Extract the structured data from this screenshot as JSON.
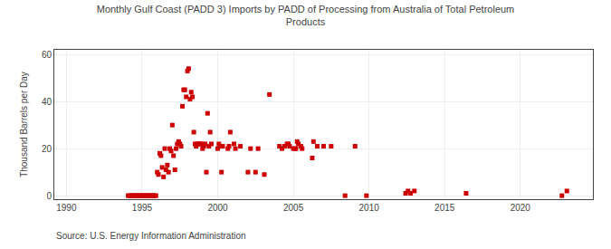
{
  "chart_data": {
    "type": "scatter",
    "title": "Monthly Gulf Coast (PADD 3) Imports by PADD of Processing from Australia of Total Petroleum\nProducts",
    "ylabel": "Thousand Barrels per Day",
    "annotations": [
      "Source: U.S. Energy Information Administration"
    ],
    "color": "#cc0000",
    "marker": "square",
    "grid": true,
    "xlim": [
      1989.2,
      2024.8
    ],
    "ylim": [
      -1.5,
      62
    ],
    "xticks": [
      1990,
      1995,
      2000,
      2005,
      2010,
      2015,
      2020
    ],
    "yticks": [
      0,
      20,
      40,
      60
    ],
    "x": [
      1994.08,
      1994.17,
      1994.25,
      1994.33,
      1994.42,
      1994.5,
      1994.58,
      1994.67,
      1994.75,
      1994.83,
      1994.92,
      1995.0,
      1995.08,
      1995.17,
      1995.25,
      1995.33,
      1995.42,
      1995.5,
      1995.58,
      1995.67,
      1995.75,
      1995.83,
      1995.92,
      1996.0,
      1996.08,
      1996.17,
      1996.25,
      1996.33,
      1996.42,
      1996.5,
      1996.58,
      1996.67,
      1996.75,
      1996.83,
      1996.92,
      1997.0,
      1997.08,
      1997.17,
      1997.25,
      1997.33,
      1997.42,
      1997.5,
      1997.58,
      1997.67,
      1997.75,
      1997.83,
      1997.92,
      1998.0,
      1998.08,
      1998.17,
      1998.25,
      1998.33,
      1998.42,
      1998.5,
      1998.58,
      1998.67,
      1998.75,
      1998.83,
      1998.92,
      1999.0,
      1999.08,
      1999.17,
      1999.25,
      1999.33,
      1999.42,
      1999.5,
      1999.58,
      2000.0,
      2000.08,
      2000.17,
      2000.25,
      2000.33,
      2000.67,
      2000.75,
      2000.83,
      2001.08,
      2001.17,
      2001.5,
      2002.0,
      2002.17,
      2002.5,
      2002.67,
      2003.08,
      2003.42,
      2004.08,
      2004.25,
      2004.42,
      2004.58,
      2004.67,
      2004.75,
      2005.0,
      2005.08,
      2005.17,
      2005.25,
      2005.33,
      2005.5,
      2005.58,
      2006.25,
      2006.33,
      2006.58,
      2007.0,
      2007.5,
      2008.42,
      2009.08,
      2009.83,
      2012.42,
      2012.58,
      2012.75,
      2013.0,
      2016.42,
      2022.75,
      2023.08
    ],
    "values": [
      0,
      0,
      0,
      0,
      0,
      0,
      0,
      0,
      0,
      0,
      0,
      0,
      0,
      0,
      0,
      0,
      0,
      0,
      0,
      0,
      0,
      0,
      0,
      10,
      9,
      18,
      17,
      12,
      8,
      20,
      11,
      13,
      10,
      20,
      19,
      30,
      17,
      11,
      20,
      22,
      23,
      22,
      21,
      38,
      45,
      45,
      42,
      53,
      54,
      41,
      44,
      42,
      27,
      22,
      21,
      22,
      22,
      22,
      22,
      20,
      21,
      22,
      10,
      35,
      21,
      27,
      22,
      20,
      22,
      21,
      10,
      21,
      20,
      21,
      27,
      22,
      20,
      21,
      10,
      20,
      10,
      20,
      9,
      43,
      21,
      20,
      21,
      22,
      22,
      21,
      20,
      20,
      20,
      23,
      22,
      21,
      20,
      16,
      23,
      21,
      21,
      21,
      0,
      21,
      0,
      1,
      2,
      1,
      2,
      1,
      0,
      2
    ]
  }
}
